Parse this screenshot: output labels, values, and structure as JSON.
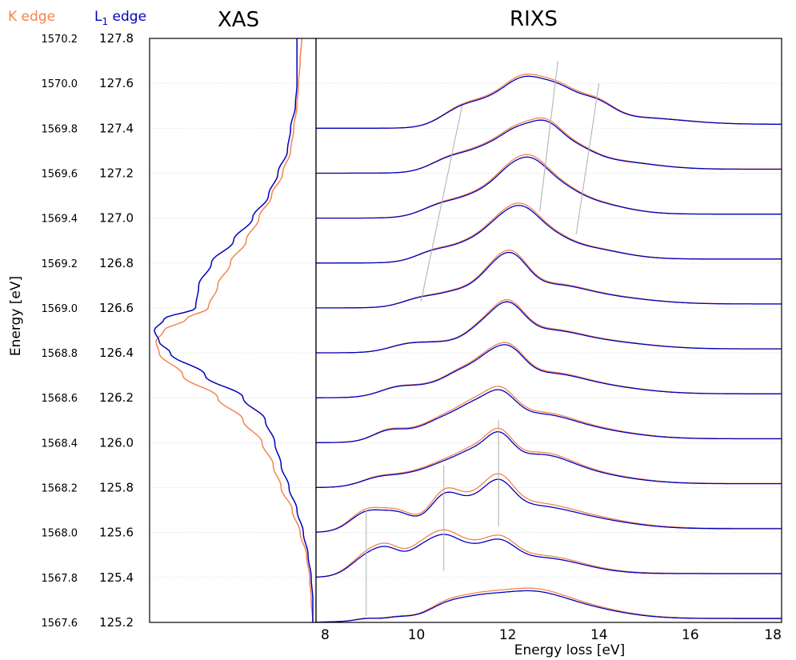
{
  "chart_data": {
    "type": "line",
    "legend": [
      {
        "name": "K edge",
        "color": "#f4844f"
      },
      {
        "name": "L1 edge",
        "label_main": "L",
        "label_sub": "1",
        "label_tail": " edge",
        "color": "#0000c0"
      }
    ],
    "xas": {
      "title": "XAS",
      "ylabel": "Energy [eV]",
      "y_L1_range": [
        125.2,
        127.8
      ],
      "y_K_range": [
        1567.6,
        1570.2
      ],
      "y_L1_ticks": [
        "125.2",
        "125.4",
        "125.6",
        "125.8",
        "126.0",
        "126.2",
        "126.4",
        "126.6",
        "126.8",
        "127.0",
        "127.2",
        "127.4",
        "127.6",
        "127.8"
      ],
      "y_K_ticks": [
        "1567.6",
        "1567.8",
        "1568.0",
        "1568.2",
        "1568.4",
        "1568.6",
        "1568.8",
        "1569.0",
        "1569.2",
        "1569.4",
        "1569.6",
        "1569.8",
        "1570.0",
        "1570.2"
      ],
      "k_edge": {
        "energy": [
          125.2,
          125.3,
          125.4,
          125.5,
          125.6,
          125.7,
          125.8,
          125.9,
          126.0,
          126.1,
          126.2,
          126.3,
          126.4,
          126.45,
          126.5,
          126.55,
          126.6,
          126.7,
          126.8,
          126.9,
          127.0,
          127.1,
          127.2,
          127.3,
          127.4,
          127.5,
          127.6,
          127.7,
          127.8
        ],
        "intensity": [
          0.0,
          0.01,
          0.02,
          0.04,
          0.08,
          0.13,
          0.2,
          0.25,
          0.32,
          0.44,
          0.6,
          0.82,
          0.97,
          0.99,
          0.94,
          0.8,
          0.66,
          0.6,
          0.52,
          0.42,
          0.34,
          0.26,
          0.19,
          0.14,
          0.12,
          0.1,
          0.09,
          0.08,
          0.07
        ]
      },
      "l1_edge": {
        "energy": [
          125.2,
          125.3,
          125.4,
          125.5,
          125.6,
          125.7,
          125.8,
          125.9,
          126.0,
          126.1,
          126.2,
          126.3,
          126.4,
          126.45,
          126.5,
          126.55,
          126.6,
          126.7,
          126.8,
          126.9,
          127.0,
          127.1,
          127.2,
          127.3,
          127.4,
          127.5,
          127.6,
          127.7,
          127.8
        ],
        "intensity": [
          0.0,
          0.0,
          0.01,
          0.03,
          0.06,
          0.1,
          0.15,
          0.2,
          0.24,
          0.3,
          0.44,
          0.68,
          0.9,
          0.97,
          1.0,
          0.94,
          0.74,
          0.72,
          0.64,
          0.5,
          0.38,
          0.28,
          0.22,
          0.16,
          0.14,
          0.11,
          0.1,
          0.1,
          0.1
        ]
      }
    },
    "rixs": {
      "title": "RIXS",
      "xlabel": "Energy loss [eV]",
      "xlim": [
        7.8,
        18
      ],
      "x_ticks": [
        8,
        10,
        12,
        14,
        16,
        18
      ],
      "incident_energies": [
        125.2,
        125.4,
        125.6,
        125.8,
        126.0,
        126.2,
        126.4,
        126.6,
        126.8,
        127.0,
        127.2,
        127.4
      ],
      "spectra": [
        {
          "e": 125.2,
          "peaks": [
            [
              8.9,
              0.06,
              0.22
            ],
            [
              9.6,
              0.09,
              0.3
            ],
            [
              10.6,
              0.32,
              0.4
            ],
            [
              11.3,
              0.42,
              0.5
            ],
            [
              12.4,
              0.7,
              0.75
            ],
            [
              13.6,
              0.3,
              0.9
            ]
          ],
          "diff": 0.04
        },
        {
          "e": 125.4,
          "peaks": [
            [
              8.9,
              0.55,
              0.35
            ],
            [
              9.4,
              0.62,
              0.3
            ],
            [
              10.1,
              0.7,
              0.32
            ],
            [
              10.6,
              0.8,
              0.3
            ],
            [
              11.1,
              0.6,
              0.35
            ],
            [
              11.8,
              0.7,
              0.35
            ],
            [
              12.7,
              0.5,
              0.9
            ]
          ],
          "diff": 0.05
        },
        {
          "e": 125.6,
          "peaks": [
            [
              8.9,
              0.55,
              0.35
            ],
            [
              9.6,
              0.5,
              0.35
            ],
            [
              10.6,
              0.95,
              0.32
            ],
            [
              11.2,
              0.55,
              0.35
            ],
            [
              11.8,
              0.95,
              0.32
            ],
            [
              12.4,
              0.55,
              0.8
            ],
            [
              13.6,
              0.3,
              1.0
            ]
          ],
          "diff": 0.05
        },
        {
          "e": 125.8,
          "peaks": [
            [
              9.2,
              0.25,
              0.4
            ],
            [
              10.0,
              0.3,
              0.4
            ],
            [
              10.6,
              0.45,
              0.35
            ],
            [
              11.2,
              0.75,
              0.35
            ],
            [
              11.8,
              1.0,
              0.3
            ],
            [
              12.6,
              0.7,
              0.7
            ],
            [
              13.6,
              0.3,
              1.0
            ]
          ],
          "diff": 0.03
        },
        {
          "e": 126.0,
          "peaks": [
            [
              9.4,
              0.3,
              0.35
            ],
            [
              10.2,
              0.3,
              0.4
            ],
            [
              10.7,
              0.45,
              0.35
            ],
            [
              11.2,
              0.65,
              0.32
            ],
            [
              11.8,
              1.05,
              0.35
            ],
            [
              12.6,
              0.55,
              0.7
            ],
            [
              13.6,
              0.3,
              1.0
            ]
          ],
          "diff": 0.03
        },
        {
          "e": 126.2,
          "peaks": [
            [
              9.6,
              0.25,
              0.4
            ],
            [
              10.4,
              0.25,
              0.4
            ],
            [
              11.0,
              0.55,
              0.35
            ],
            [
              11.5,
              0.55,
              0.3
            ],
            [
              12.0,
              1.05,
              0.35
            ],
            [
              12.8,
              0.45,
              0.7
            ],
            [
              13.8,
              0.25,
              1.0
            ]
          ],
          "diff": 0.02
        },
        {
          "e": 126.4,
          "peaks": [
            [
              9.8,
              0.18,
              0.4
            ],
            [
              10.6,
              0.2,
              0.45
            ],
            [
              11.4,
              0.5,
              0.35
            ],
            [
              12.0,
              1.05,
              0.35
            ],
            [
              12.8,
              0.45,
              0.7
            ],
            [
              14.0,
              0.22,
              1.0
            ]
          ],
          "diff": 0.02
        },
        {
          "e": 126.6,
          "peaks": [
            [
              10.1,
              0.22,
              0.4
            ],
            [
              10.9,
              0.35,
              0.4
            ],
            [
              11.6,
              0.62,
              0.35
            ],
            [
              12.1,
              1.05,
              0.35
            ],
            [
              12.9,
              0.45,
              0.7
            ],
            [
              14.0,
              0.22,
              1.0
            ]
          ],
          "diff": 0.02
        },
        {
          "e": 126.8,
          "peaks": [
            [
              10.4,
              0.28,
              0.4
            ],
            [
              11.2,
              0.45,
              0.4
            ],
            [
              11.8,
              0.75,
              0.35
            ],
            [
              12.3,
              0.95,
              0.35
            ],
            [
              12.8,
              0.55,
              0.45
            ],
            [
              13.6,
              0.35,
              0.8
            ]
          ],
          "diff": 0.02
        },
        {
          "e": 127.0,
          "peaks": [
            [
              10.6,
              0.35,
              0.45
            ],
            [
              11.4,
              0.5,
              0.4
            ],
            [
              12.0,
              0.85,
              0.35
            ],
            [
              12.5,
              0.95,
              0.35
            ],
            [
              13.0,
              0.55,
              0.45
            ],
            [
              13.6,
              0.4,
              0.8
            ]
          ],
          "diff": 0.02
        },
        {
          "e": 127.2,
          "peaks": [
            [
              10.8,
              0.4,
              0.45
            ],
            [
              11.6,
              0.55,
              0.4
            ],
            [
              12.2,
              0.85,
              0.35
            ],
            [
              12.8,
              1.0,
              0.35
            ],
            [
              13.4,
              0.5,
              0.45
            ],
            [
              14.2,
              0.25,
              0.9
            ]
          ],
          "diff": 0.02
        },
        {
          "e": 127.4,
          "peaks": [
            [
              11.0,
              0.5,
              0.45
            ],
            [
              11.8,
              0.6,
              0.45
            ],
            [
              12.4,
              1.0,
              0.4
            ],
            [
              13.1,
              0.9,
              0.4
            ],
            [
              13.9,
              0.55,
              0.4
            ],
            [
              14.8,
              0.2,
              1.0
            ]
          ],
          "diff": 0.02
        }
      ],
      "guide_lines": [
        [
          [
            8.9,
            125.2
          ],
          [
            8.9,
            125.6
          ]
        ],
        [
          [
            10.6,
            125.4
          ],
          [
            10.6,
            125.8
          ]
        ],
        [
          [
            11.8,
            125.6
          ],
          [
            11.8,
            126.0
          ]
        ],
        [
          [
            10.1,
            126.6
          ],
          [
            11.0,
            127.4
          ]
        ],
        [
          [
            12.7,
            127.0
          ],
          [
            13.1,
            127.6
          ]
        ],
        [
          [
            13.5,
            126.9
          ],
          [
            14.0,
            127.5
          ]
        ]
      ]
    }
  }
}
